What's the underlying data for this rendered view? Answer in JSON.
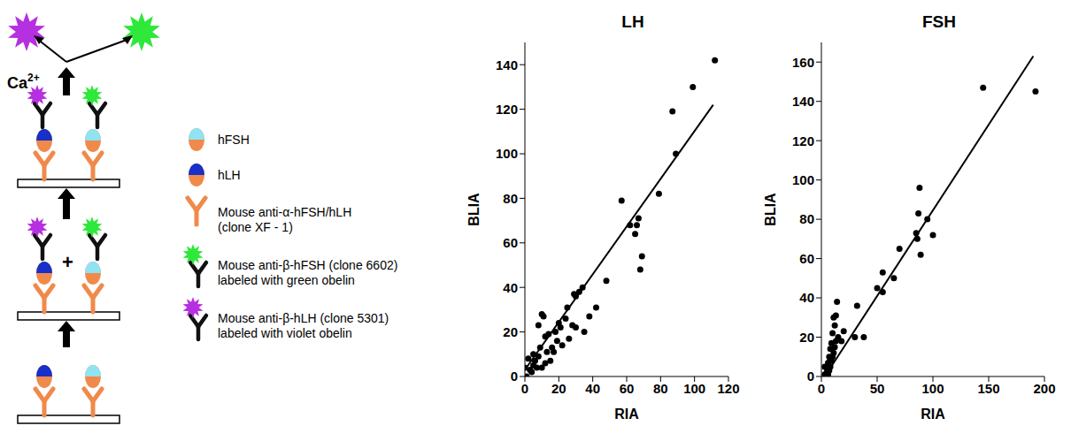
{
  "diagram": {
    "ca_label": {
      "base": "Ca",
      "superscript": "2+"
    },
    "plus": "+",
    "legend": [
      {
        "label": [
          "hFSH"
        ]
      },
      {
        "label": [
          "hLH"
        ]
      },
      {
        "label": [
          "Mouse anti-α-hFSH/hLH",
          "(clone XF - 1)"
        ]
      },
      {
        "label": [
          "Mouse anti-β-hFSH (clone 6602)",
          "labeled with green obelin"
        ]
      },
      {
        "label": [
          "Mouse anti-β-hLH (clone 5301)",
          "labeled with violet obelin"
        ]
      }
    ]
  },
  "chart_data": [
    {
      "type": "scatter",
      "title": "LH",
      "xlabel": "RIA",
      "ylabel": "BLIA",
      "xlim": [
        0,
        120
      ],
      "xticks": [
        0,
        20,
        40,
        60,
        80,
        100,
        120
      ],
      "ylim": [
        0,
        150
      ],
      "yticks": [
        0,
        20,
        40,
        60,
        80,
        100,
        120,
        140
      ],
      "grid": false,
      "series": [
        {
          "type": "scatter",
          "marker": "circle",
          "color": "#000000",
          "x": [
            112,
            99,
            87,
            89,
            79,
            67,
            66,
            65,
            68,
            69,
            57,
            62,
            48,
            42,
            38,
            34,
            35,
            32,
            29,
            30,
            28,
            25,
            24,
            21,
            20,
            19,
            18,
            17,
            15,
            16,
            14,
            12,
            11,
            10,
            9,
            8,
            8,
            7,
            6,
            5,
            5,
            4,
            3,
            2,
            1,
            0,
            10,
            12,
            13,
            22,
            26,
            30
          ],
          "values": [
            142,
            130,
            119,
            100,
            82,
            71,
            68,
            64,
            48,
            54,
            79,
            68,
            43,
            31,
            27,
            40,
            20,
            38,
            37,
            22,
            23,
            31,
            26,
            22,
            24,
            16,
            20,
            11,
            7,
            13,
            19,
            18,
            27,
            28,
            13,
            9,
            23,
            4,
            7,
            10,
            5,
            2,
            3,
            8,
            0,
            4,
            4,
            6,
            11,
            14,
            17,
            36
          ]
        },
        {
          "type": "line",
          "line_style": "solid",
          "color": "#000000",
          "x": [
            0,
            111
          ],
          "values": [
            3,
            122
          ]
        }
      ]
    },
    {
      "type": "scatter",
      "title": "FSH",
      "xlabel": "RIA",
      "ylabel": "BLIA",
      "xlim": [
        0,
        200
      ],
      "xticks": [
        0,
        50,
        100,
        150,
        200
      ],
      "ylim": [
        0,
        170
      ],
      "yticks": [
        0,
        20,
        40,
        60,
        80,
        100,
        120,
        140,
        160
      ],
      "grid": false,
      "series": [
        {
          "type": "scatter",
          "marker": "circle",
          "color": "#000000",
          "x": [
            192,
            145,
            100,
            95,
            88,
            87,
            89,
            86,
            85,
            70,
            65,
            55,
            55,
            50,
            38,
            32,
            30,
            20,
            18,
            15,
            14,
            13,
            12,
            11,
            10,
            9,
            8,
            7,
            6,
            5,
            4,
            3,
            12,
            10,
            8,
            6,
            5,
            3,
            7,
            9,
            11,
            13
          ],
          "values": [
            145,
            147,
            72,
            80,
            96,
            83,
            62,
            70,
            73,
            65,
            50,
            53,
            43,
            45,
            20,
            36,
            20,
            23,
            18,
            20,
            38,
            31,
            15,
            12,
            22,
            8,
            5,
            3,
            7,
            2,
            0,
            1,
            26,
            10,
            14,
            1,
            4,
            5,
            10,
            17,
            30,
            18
          ]
        },
        {
          "type": "line",
          "line_style": "solid",
          "color": "#000000",
          "x": [
            3,
            190
          ],
          "values": [
            0,
            163
          ]
        }
      ]
    }
  ]
}
